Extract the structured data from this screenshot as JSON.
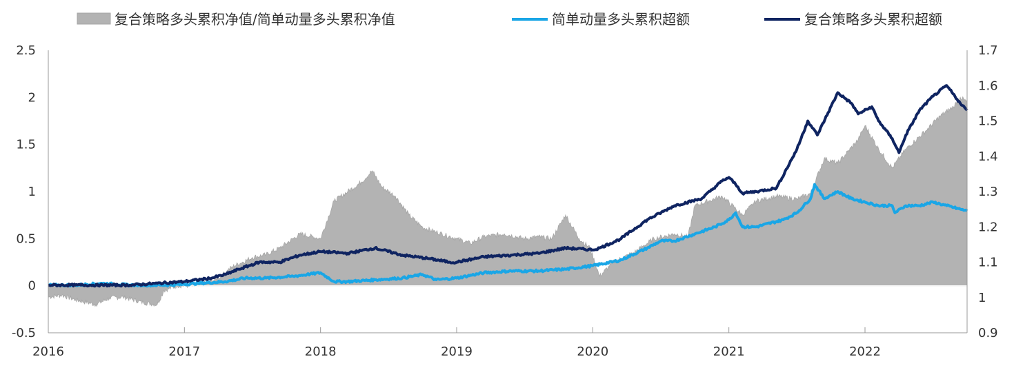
{
  "chart_data": {
    "type": "line",
    "title": "",
    "xlabel": "",
    "ylabel": "",
    "legend_position": "top",
    "grid": false,
    "x_ticks": [
      "2016",
      "2017",
      "2018",
      "2019",
      "2020",
      "2021",
      "2022"
    ],
    "x_range": [
      2016.0,
      2022.75
    ],
    "y_left": {
      "range": [
        -0.5,
        2.5
      ],
      "ticks": [
        "-0.5",
        "0",
        "0.5",
        "1",
        "1.5",
        "2",
        "2.5"
      ]
    },
    "y_right": {
      "range": [
        0.9,
        1.7
      ],
      "ticks": [
        "0.9",
        "1",
        "1.1",
        "1.2",
        "1.3",
        "1.4",
        "1.5",
        "1.6",
        "1.7"
      ]
    },
    "series": [
      {
        "name": "复合策略多头累积净值/简单动量多头累积净值",
        "kind": "area",
        "axis": "left",
        "color": "#b3b3b3",
        "x": [
          2016.0,
          2016.1,
          2016.2,
          2016.35,
          2016.45,
          2016.55,
          2016.7,
          2016.8,
          2016.85,
          2016.95,
          2017.1,
          2017.25,
          2017.35,
          2017.5,
          2017.6,
          2017.7,
          2017.85,
          2018.0,
          2018.1,
          2018.2,
          2018.3,
          2018.38,
          2018.45,
          2018.55,
          2018.65,
          2018.75,
          2018.85,
          2019.0,
          2019.1,
          2019.2,
          2019.35,
          2019.5,
          2019.6,
          2019.7,
          2019.8,
          2019.9,
          2019.98,
          2020.05,
          2020.15,
          2020.3,
          2020.45,
          2020.6,
          2020.7,
          2020.75,
          2020.85,
          2020.95,
          2021.1,
          2021.2,
          2021.35,
          2021.5,
          2021.6,
          2021.7,
          2021.8,
          2021.95,
          2022.0,
          2022.1,
          2022.2,
          2022.3,
          2022.45,
          2022.55,
          2022.65,
          2022.7,
          2022.75
        ],
        "values": [
          -0.12,
          -0.1,
          -0.15,
          -0.2,
          -0.13,
          -0.12,
          -0.18,
          -0.2,
          -0.05,
          0.0,
          0.0,
          0.08,
          0.2,
          0.3,
          0.33,
          0.4,
          0.55,
          0.5,
          0.9,
          1.0,
          1.1,
          1.22,
          1.05,
          0.95,
          0.75,
          0.62,
          0.57,
          0.5,
          0.45,
          0.52,
          0.55,
          0.5,
          0.52,
          0.5,
          0.75,
          0.5,
          0.4,
          0.1,
          0.25,
          0.35,
          0.5,
          0.55,
          0.52,
          0.85,
          0.9,
          0.95,
          0.75,
          0.9,
          0.95,
          0.92,
          0.98,
          1.35,
          1.3,
          1.55,
          1.7,
          1.45,
          1.25,
          1.45,
          1.65,
          1.8,
          1.9,
          2.0,
          1.95
        ]
      },
      {
        "name": "简单动量多头累积超额",
        "kind": "line",
        "axis": "right",
        "color": "#1aa6e6",
        "x": [
          2016.0,
          2016.2,
          2016.4,
          2016.6,
          2016.8,
          2016.9,
          2017.1,
          2017.3,
          2017.45,
          2017.6,
          2017.8,
          2017.9,
          2018.0,
          2018.1,
          2018.2,
          2018.4,
          2018.6,
          2018.75,
          2018.85,
          2019.0,
          2019.2,
          2019.4,
          2019.6,
          2019.8,
          2020.0,
          2020.2,
          2020.4,
          2020.5,
          2020.6,
          2020.75,
          2020.9,
          2021.0,
          2021.05,
          2021.1,
          2021.2,
          2021.4,
          2021.5,
          2021.6,
          2021.63,
          2021.7,
          2021.8,
          2021.9,
          2022.0,
          2022.1,
          2022.2,
          2022.22,
          2022.3,
          2022.4,
          2022.5,
          2022.6,
          2022.7,
          2022.75
        ],
        "values": [
          1.035,
          1.035,
          1.04,
          1.035,
          1.035,
          1.035,
          1.04,
          1.045,
          1.055,
          1.055,
          1.06,
          1.065,
          1.07,
          1.045,
          1.045,
          1.05,
          1.055,
          1.065,
          1.05,
          1.055,
          1.07,
          1.075,
          1.075,
          1.08,
          1.09,
          1.105,
          1.14,
          1.16,
          1.16,
          1.18,
          1.2,
          1.22,
          1.24,
          1.2,
          1.2,
          1.22,
          1.24,
          1.28,
          1.32,
          1.28,
          1.3,
          1.28,
          1.27,
          1.26,
          1.26,
          1.24,
          1.26,
          1.26,
          1.27,
          1.26,
          1.25,
          1.245
        ]
      },
      {
        "name": "复合策略多头累积超额",
        "kind": "line",
        "axis": "right",
        "color": "#0f2461",
        "x": [
          2016.0,
          2016.2,
          2016.4,
          2016.6,
          2016.8,
          2017.0,
          2017.2,
          2017.3,
          2017.4,
          2017.55,
          2017.7,
          2017.85,
          2018.0,
          2018.2,
          2018.4,
          2018.6,
          2018.8,
          2018.95,
          2019.0,
          2019.2,
          2019.4,
          2019.6,
          2019.8,
          2020.0,
          2020.05,
          2020.2,
          2020.4,
          2020.6,
          2020.8,
          2020.95,
          2021.0,
          2021.05,
          2021.1,
          2021.2,
          2021.35,
          2021.5,
          2021.58,
          2021.65,
          2021.8,
          2021.9,
          2021.95,
          2022.05,
          2022.1,
          2022.2,
          2022.25,
          2022.3,
          2022.4,
          2022.5,
          2022.6,
          2022.7,
          2022.75
        ],
        "values": [
          1.035,
          1.035,
          1.035,
          1.035,
          1.04,
          1.045,
          1.055,
          1.065,
          1.08,
          1.1,
          1.1,
          1.12,
          1.13,
          1.125,
          1.14,
          1.12,
          1.11,
          1.1,
          1.1,
          1.115,
          1.12,
          1.125,
          1.14,
          1.135,
          1.14,
          1.165,
          1.22,
          1.26,
          1.28,
          1.33,
          1.34,
          1.32,
          1.295,
          1.3,
          1.31,
          1.42,
          1.5,
          1.46,
          1.58,
          1.55,
          1.52,
          1.54,
          1.5,
          1.45,
          1.41,
          1.46,
          1.53,
          1.57,
          1.6,
          1.55,
          1.53
        ]
      }
    ]
  }
}
